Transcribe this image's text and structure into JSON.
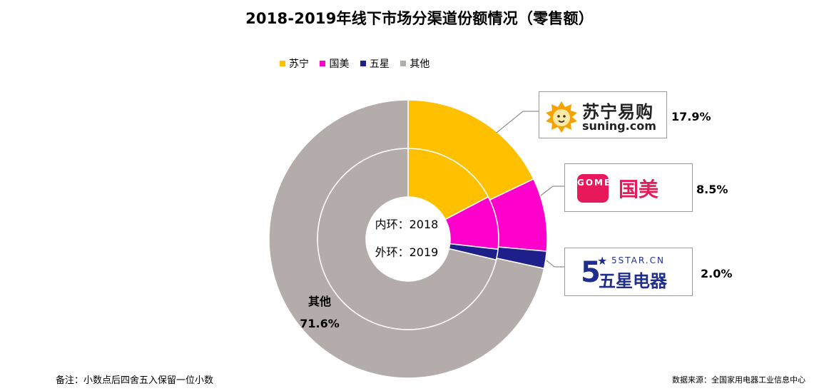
{
  "title": "2018-2019年线下市场分渠道份额情况（零售额）",
  "legend": [
    {
      "label": "苏宁",
      "color": "#ffc000"
    },
    {
      "label": "国美",
      "color": "#ff00cc"
    },
    {
      "label": "五星",
      "color": "#1f1f8c"
    },
    {
      "label": "其他",
      "color": "#b4acab"
    }
  ],
  "chart_data": {
    "type": "pie",
    "subtype": "donut",
    "legend_position": "top",
    "categories": [
      "苏宁",
      "国美",
      "五星",
      "其他"
    ],
    "colors": [
      "#ffc000",
      "#ff00cc",
      "#1f1f8c",
      "#b4acab"
    ],
    "series": [
      {
        "name": "2018",
        "ring": "inner",
        "values": [
          17.3,
          9.5,
          1.9,
          71.3
        ]
      },
      {
        "name": "2019",
        "ring": "outer",
        "values": [
          17.9,
          8.5,
          2.0,
          71.6
        ]
      }
    ],
    "center_labels": [
      "内环：2018",
      "外环：2019"
    ],
    "data_labels": {
      "suning": "17.9%",
      "gome": "8.5%",
      "fivestar": "2.0%",
      "other_name": "其他",
      "other_value": "71.6%"
    }
  },
  "logos": {
    "suning": {
      "cn": "苏宁易购",
      "en": "suning.com",
      "icon": "suning-lion-icon"
    },
    "gome": {
      "mark": "GOME",
      "cn": "国美",
      "icon": "gome-logo-icon"
    },
    "fivestar": {
      "five": "5",
      "star": "★",
      "en": "5STAR.CN",
      "cn": "五星电器",
      "icon": "fivestar-logo-icon"
    }
  },
  "footer": {
    "note": "备注：小数点后四舍五入保留一位小数",
    "source": "数据来源：全国家用电器工业信息中心"
  }
}
